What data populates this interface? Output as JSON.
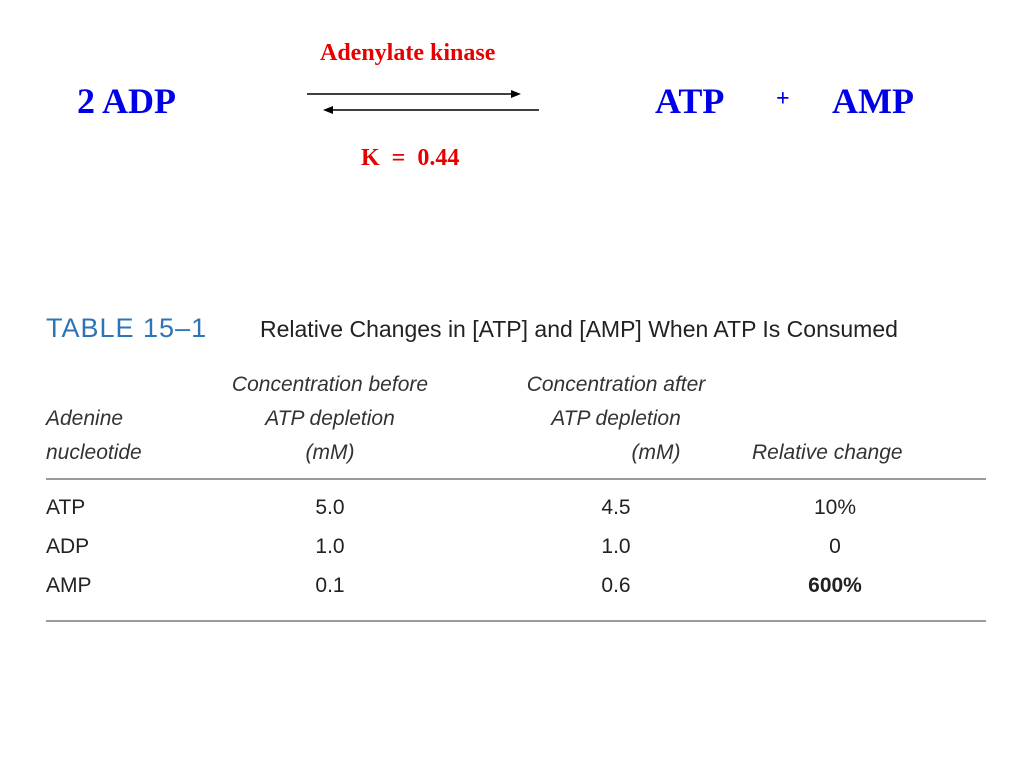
{
  "reaction": {
    "enzyme": "Adenylate kinase",
    "reactant": "2 ADP",
    "product_1": "ATP",
    "plus": "+",
    "product_2": "AMP",
    "equilibrium": "K  =  0.44"
  },
  "table": {
    "number": "TABLE 15–1",
    "caption": "Relative Changes in [ATP] and [AMP] When ATP Is Consumed",
    "headers": {
      "nucleotide": [
        "Adenine",
        "nucleotide"
      ],
      "before": [
        "Concentration before",
        "ATP depletion",
        "(mM)"
      ],
      "after": [
        "Concentration after",
        "ATP depletion",
        "(mM)"
      ],
      "change": "Relative change"
    },
    "rows": [
      {
        "name": "ATP",
        "before": "5.0",
        "after": "4.5",
        "change": "10%"
      },
      {
        "name": "ADP",
        "before": "1.0",
        "after": "1.0",
        "change": "0"
      },
      {
        "name": "AMP",
        "before": "0.1",
        "after": "0.6",
        "change": "600%"
      }
    ]
  },
  "colors": {
    "red": "#e60000",
    "blue": "#0000e6",
    "table_title_blue": "#2e74b5"
  }
}
